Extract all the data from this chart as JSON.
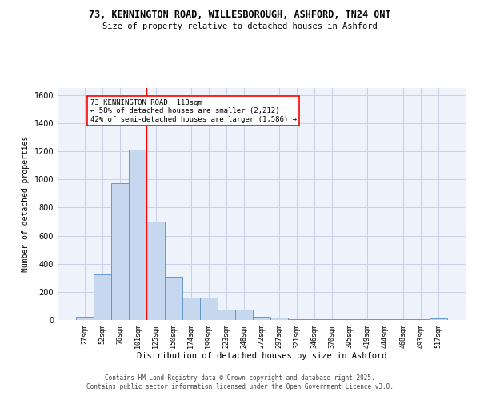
{
  "title1": "73, KENNINGTON ROAD, WILLESBOROUGH, ASHFORD, TN24 0NT",
  "title2": "Size of property relative to detached houses in Ashford",
  "xlabel": "Distribution of detached houses by size in Ashford",
  "ylabel": "Number of detached properties",
  "bar_values": [
    20,
    325,
    975,
    1210,
    700,
    305,
    160,
    160,
    75,
    75,
    25,
    15,
    5,
    5,
    5,
    5,
    5,
    5,
    5,
    5,
    10
  ],
  "categories": [
    "27sqm",
    "52sqm",
    "76sqm",
    "101sqm",
    "125sqm",
    "150sqm",
    "174sqm",
    "199sqm",
    "223sqm",
    "248sqm",
    "272sqm",
    "297sqm",
    "321sqm",
    "346sqm",
    "370sqm",
    "395sqm",
    "419sqm",
    "444sqm",
    "468sqm",
    "493sqm",
    "517sqm"
  ],
  "bar_color": "#c5d8f0",
  "bar_edge_color": "#5a8fc2",
  "grid_color": "#c8d0e8",
  "background_color": "#eef2fb",
  "annotation_text": "73 KENNINGTON ROAD: 118sqm\n← 58% of detached houses are smaller (2,212)\n42% of semi-detached houses are larger (1,586) →",
  "annotation_box_color": "white",
  "annotation_box_edge_color": "red",
  "ylim": [
    0,
    1650
  ],
  "yticks": [
    0,
    200,
    400,
    600,
    800,
    1000,
    1200,
    1400,
    1600
  ],
  "footer_line1": "Contains HM Land Registry data © Crown copyright and database right 2025.",
  "footer_line2": "Contains public sector information licensed under the Open Government Licence v3.0."
}
